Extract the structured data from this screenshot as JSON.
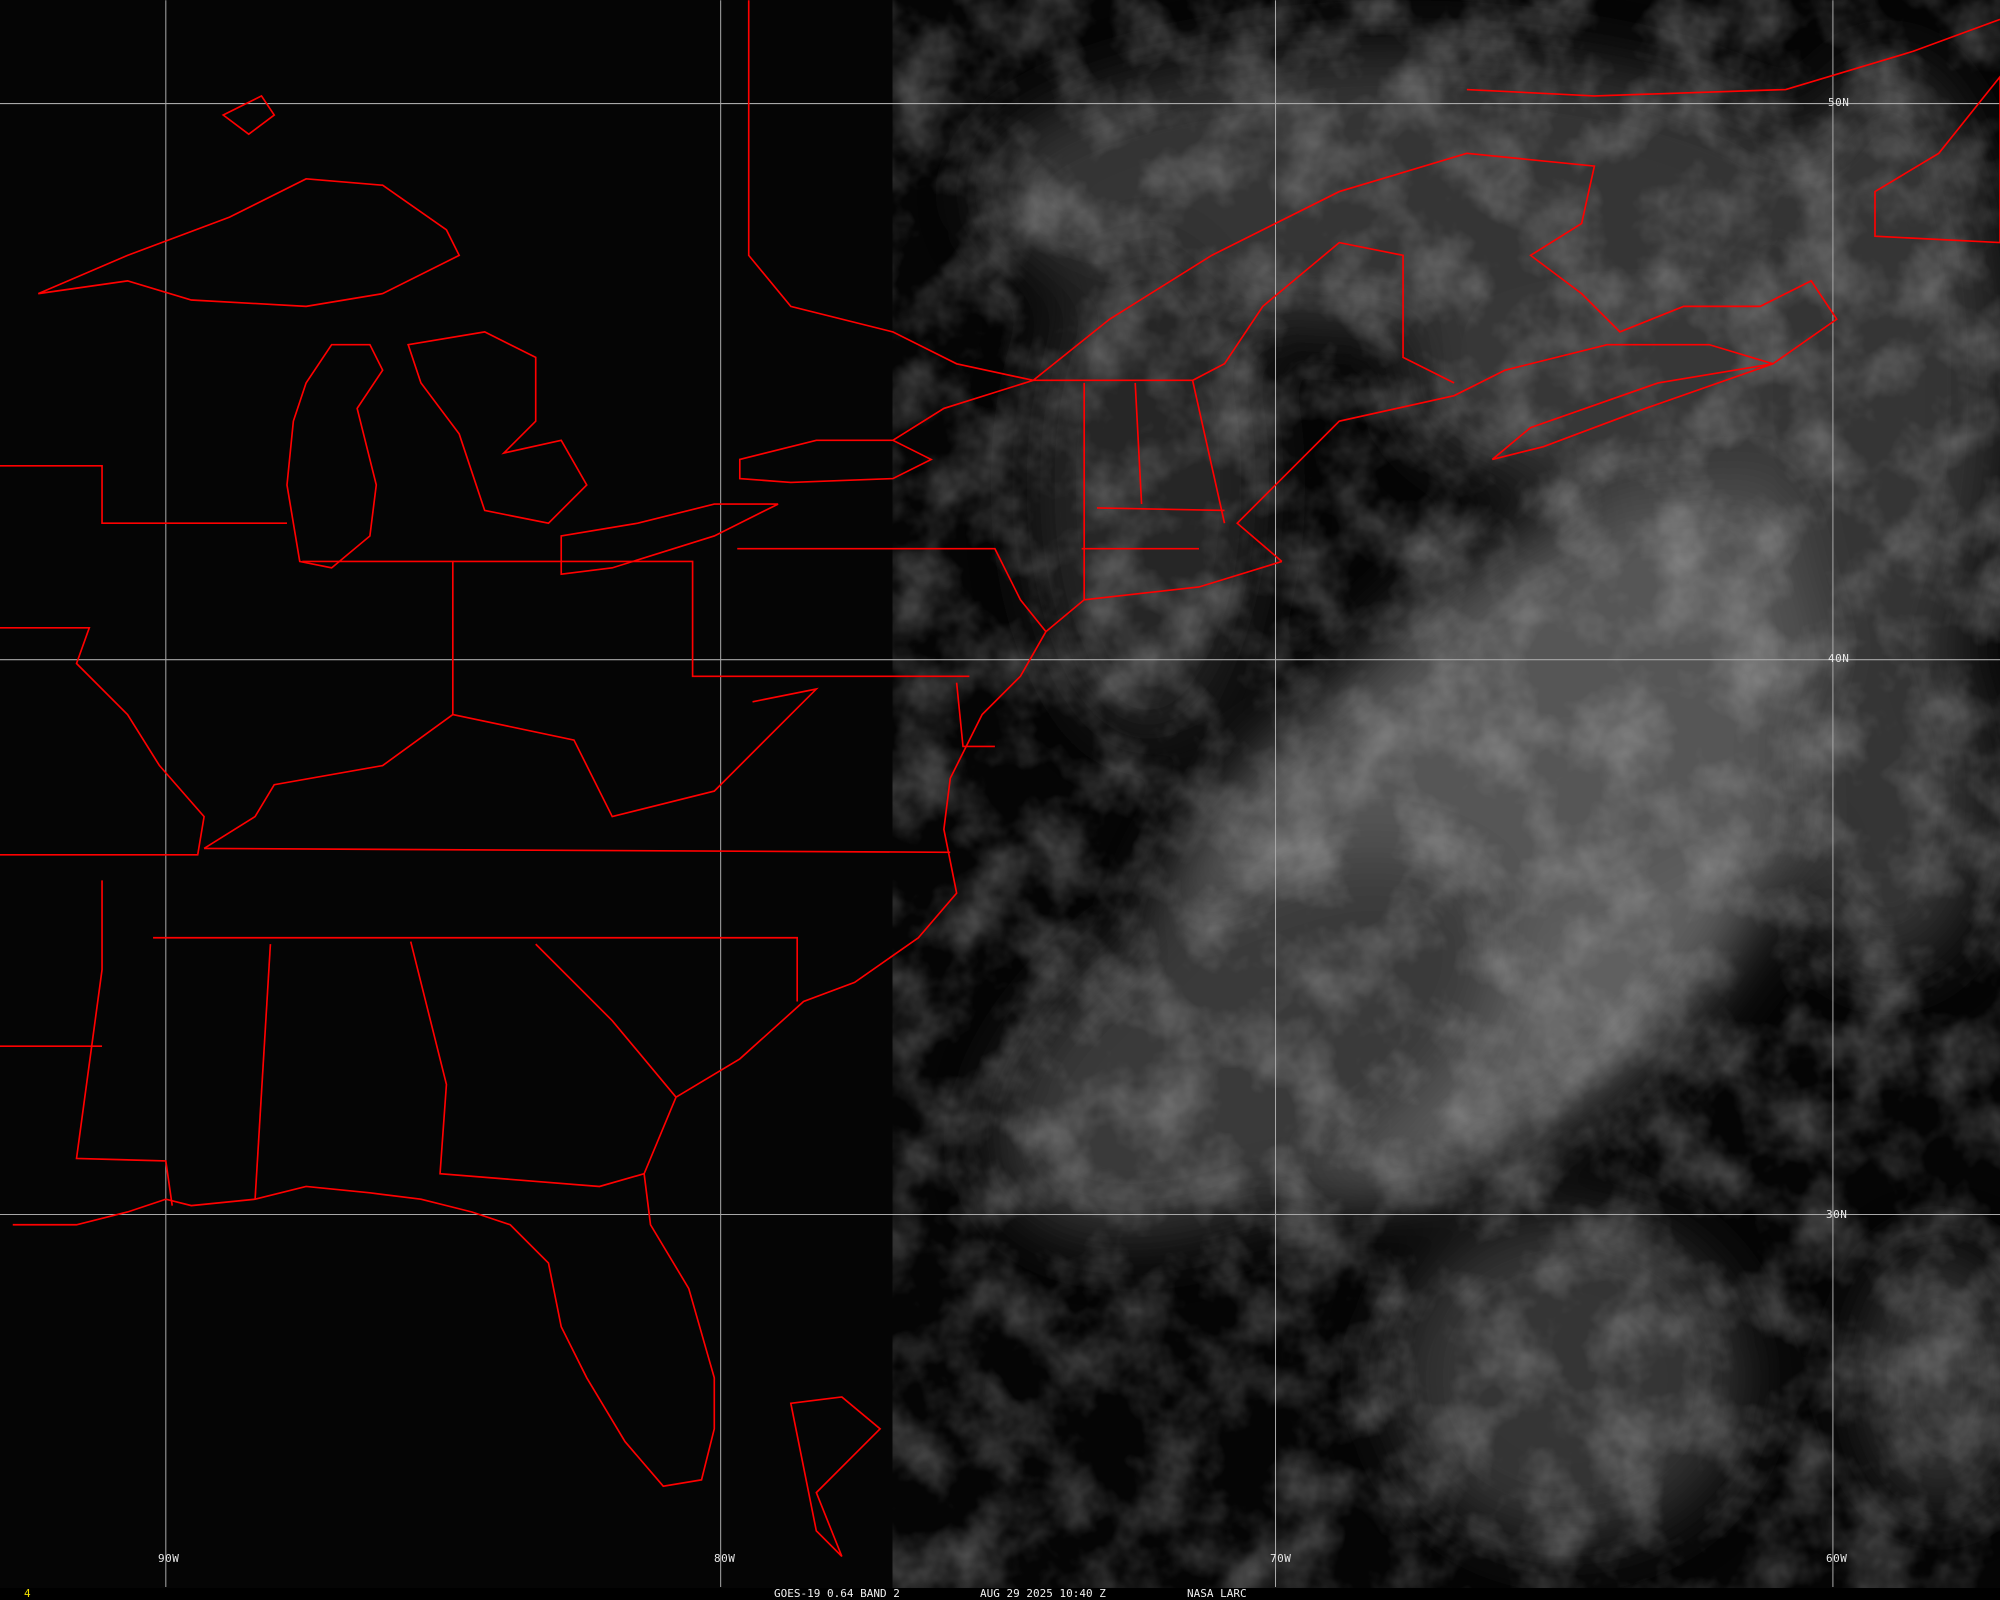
{
  "map": {
    "boundary_color": "#ff0000",
    "grid_color": "#b0b0b0",
    "frame_number_color": "#f0e000",
    "longitude_labels": [
      "90W",
      "80W",
      "70W",
      "60W"
    ],
    "latitude_labels": [
      "50N",
      "40N",
      "30N"
    ]
  },
  "footer": {
    "frame_number": "4",
    "product": "GOES-19 0.64 BAND 2",
    "datetime": "AUG 29 2025 10:40 Z",
    "source": "NASA LARC"
  }
}
